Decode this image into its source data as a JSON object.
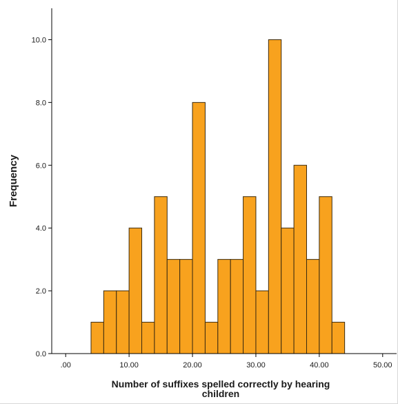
{
  "chart_data": {
    "type": "bar",
    "title": "",
    "xlabel": "Number of suffixes spelled correctly by hearing children",
    "xlabel_lines": [
      "Number of suffixes spelled correctly by hearing",
      "children"
    ],
    "ylabel": "Frequency",
    "xlim": [
      -2.2,
      52.2
    ],
    "ylim": [
      0,
      11
    ],
    "x_ticks": [
      0,
      10,
      20,
      30,
      40,
      50
    ],
    "x_tick_labels": [
      ".00",
      "10.00",
      "20.00",
      "30.00",
      "40.00",
      "50.00"
    ],
    "y_ticks": [
      0,
      2,
      4,
      6,
      8,
      10
    ],
    "y_tick_labels": [
      "0.0",
      "2.0",
      "4.0",
      "6.0",
      "8.0",
      "10.0"
    ],
    "grid": false,
    "bin_width": 2,
    "bins": [
      {
        "start": 4,
        "end": 6,
        "value": 1
      },
      {
        "start": 6,
        "end": 8,
        "value": 2
      },
      {
        "start": 8,
        "end": 10,
        "value": 2
      },
      {
        "start": 10,
        "end": 12,
        "value": 4
      },
      {
        "start": 12,
        "end": 14,
        "value": 1
      },
      {
        "start": 14,
        "end": 16,
        "value": 5
      },
      {
        "start": 16,
        "end": 18,
        "value": 3
      },
      {
        "start": 18,
        "end": 20,
        "value": 3
      },
      {
        "start": 20,
        "end": 22,
        "value": 8
      },
      {
        "start": 22,
        "end": 24,
        "value": 1
      },
      {
        "start": 24,
        "end": 26,
        "value": 3
      },
      {
        "start": 26,
        "end": 28,
        "value": 3
      },
      {
        "start": 28,
        "end": 30,
        "value": 5
      },
      {
        "start": 30,
        "end": 32,
        "value": 2
      },
      {
        "start": 32,
        "end": 34,
        "value": 10
      },
      {
        "start": 34,
        "end": 36,
        "value": 4
      },
      {
        "start": 36,
        "end": 38,
        "value": 6
      },
      {
        "start": 38,
        "end": 40,
        "value": 3
      },
      {
        "start": 40,
        "end": 42,
        "value": 5
      },
      {
        "start": 42,
        "end": 44,
        "value": 1
      }
    ],
    "colors": {
      "bar_fill": "#F8A21E",
      "bar_stroke": "#3a2a10",
      "axis": "#000000",
      "text": "#1a1a1a"
    }
  }
}
